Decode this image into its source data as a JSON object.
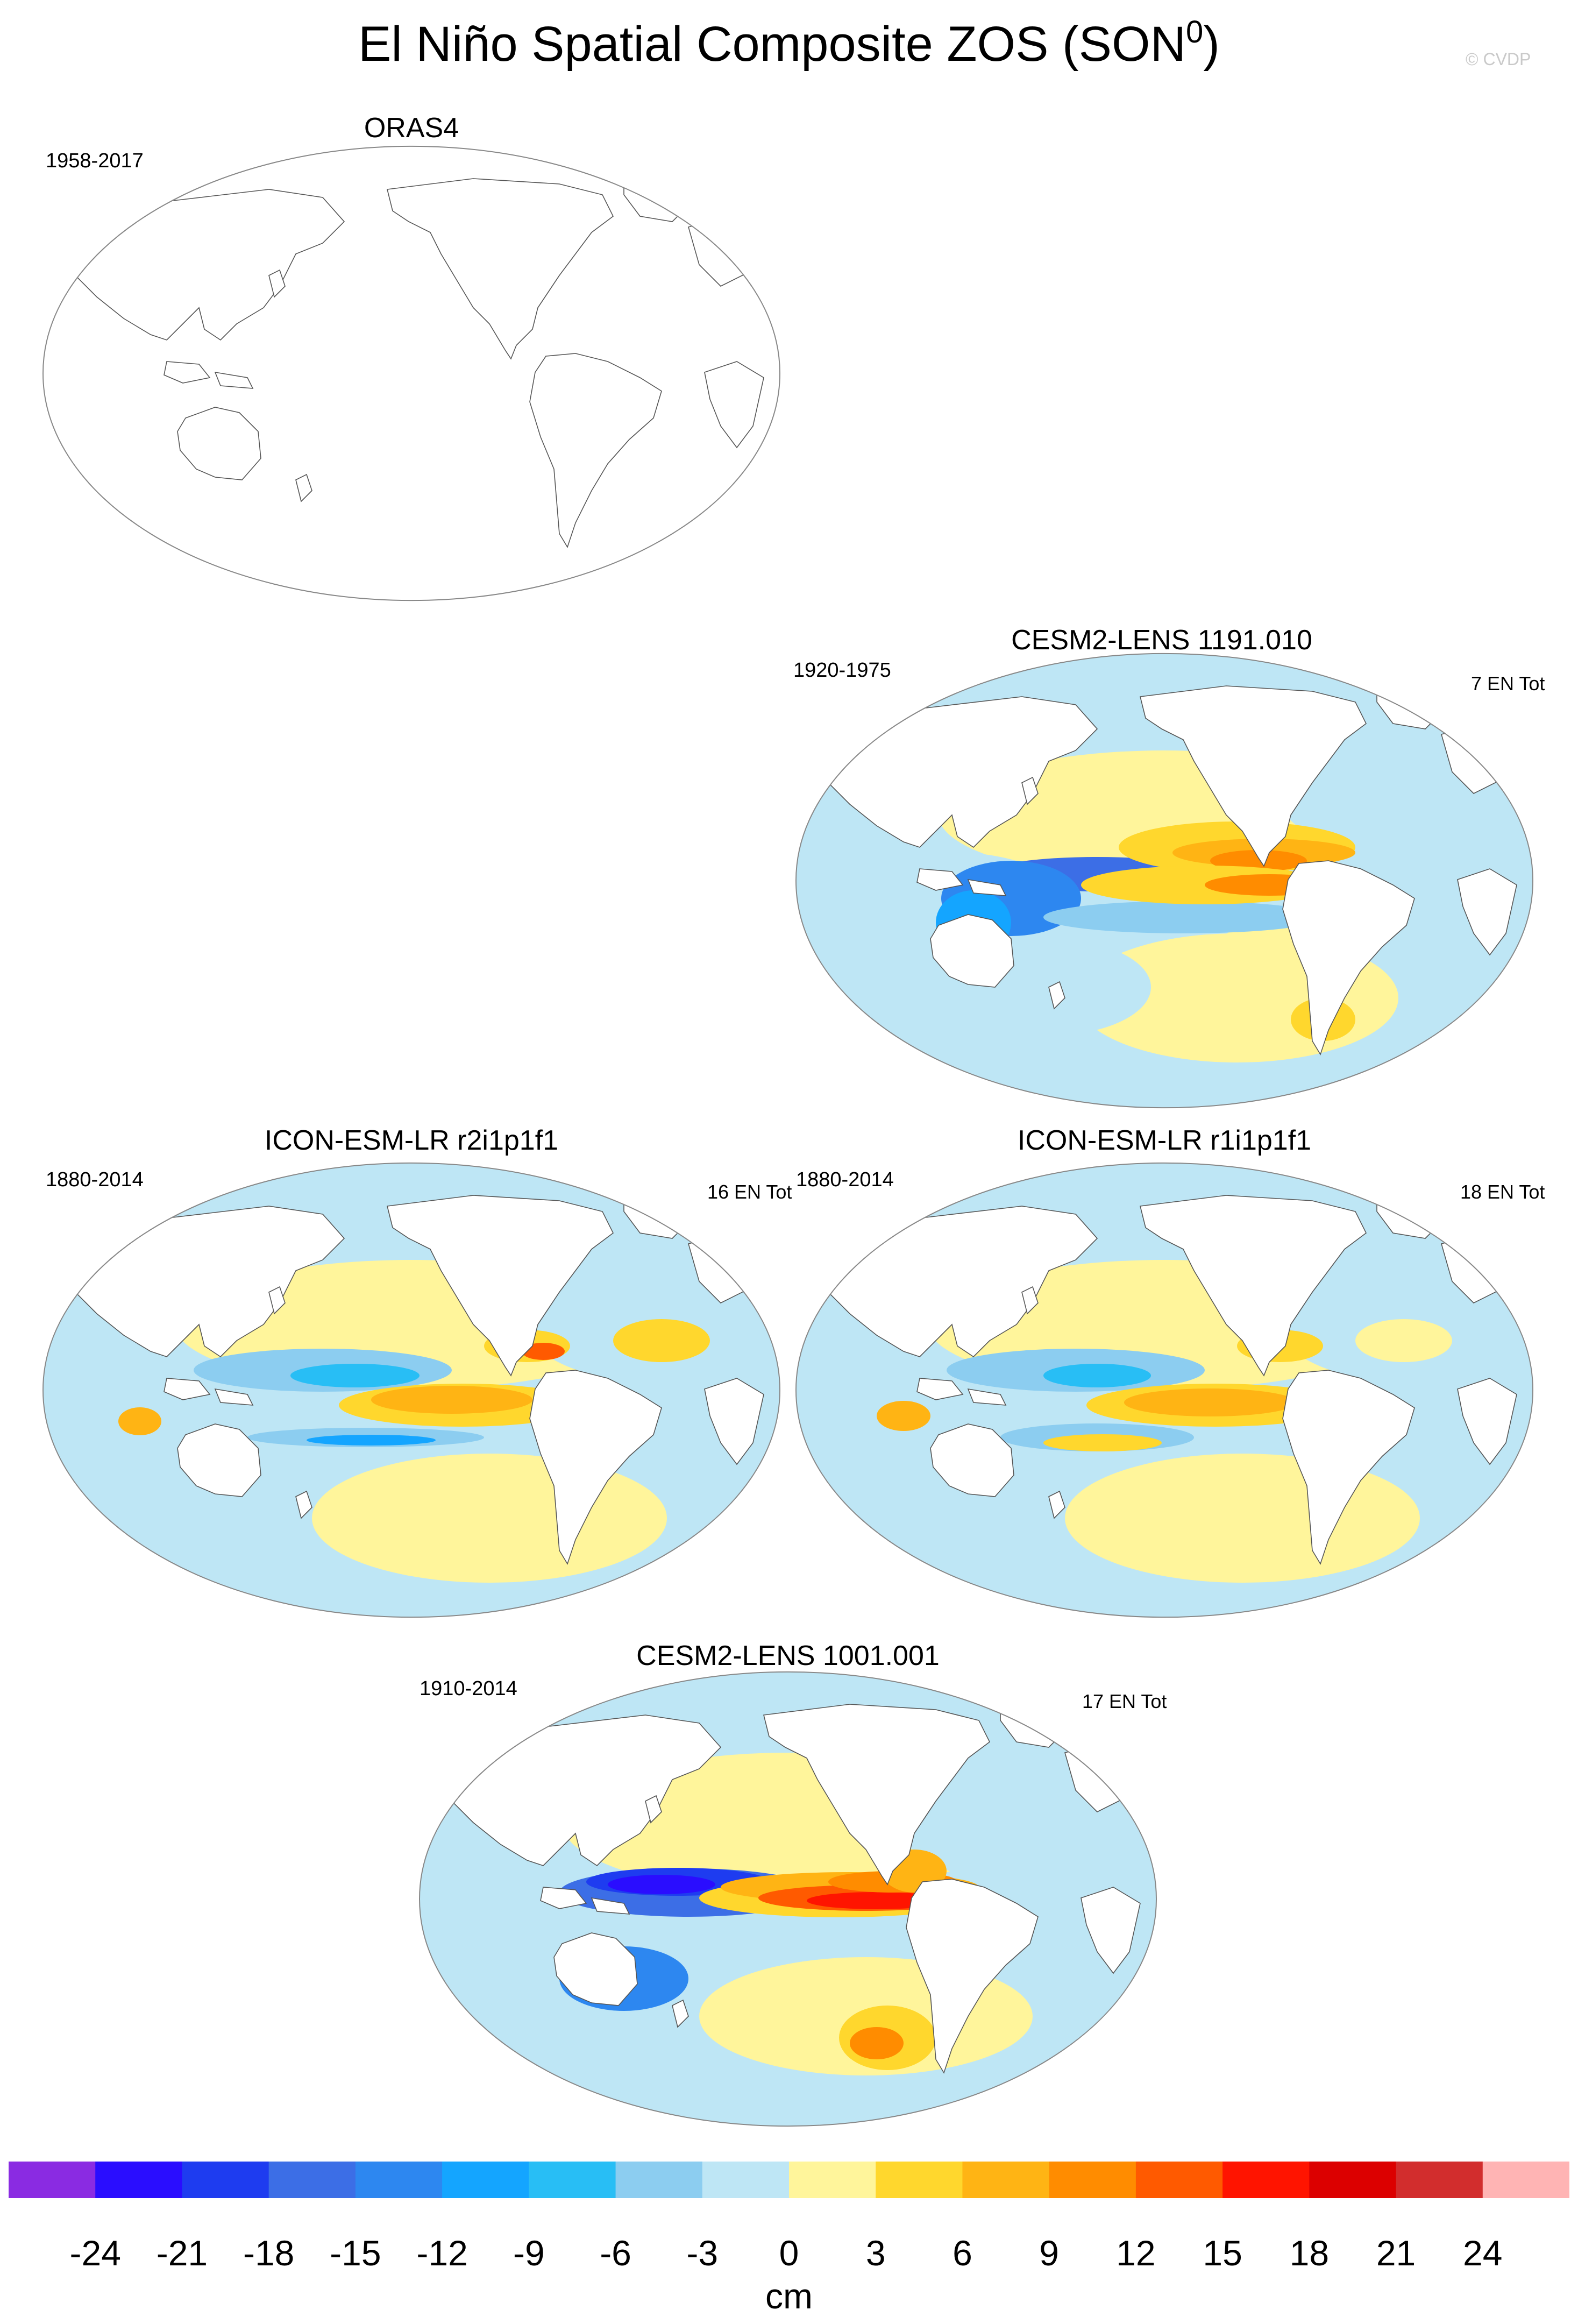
{
  "figure": {
    "title_main": "El Niño Spatial Composite ZOS (SON",
    "title_sup": "0",
    "title_close": ")",
    "watermark": "© CVDP"
  },
  "panels": [
    {
      "title": "ORAS4",
      "years": "1958-2017",
      "count": ""
    },
    {
      "title": "CESM2-LENS 1191.010",
      "years": "1920-1975",
      "count": "7 EN Tot"
    },
    {
      "title": "ICON-ESM-LR r2i1p1f1",
      "years": "1880-2014",
      "count": "16 EN Tot"
    },
    {
      "title": "ICON-ESM-LR r1i1p1f1",
      "years": "1880-2014",
      "count": "18 EN Tot"
    },
    {
      "title": "CESM2-LENS 1001.001",
      "years": "1910-2014",
      "count": "17 EN Tot"
    }
  ],
  "colorbar": {
    "units": "cm",
    "labels": [
      "-24",
      "-21",
      "-18",
      "-15",
      "-12",
      "-9",
      "-6",
      "-3",
      "0",
      "3",
      "6",
      "9",
      "12",
      "15",
      "18",
      "21",
      "24"
    ],
    "colors": [
      "#8a2be2",
      "#2a0dff",
      "#1e3cf0",
      "#3c6ee6",
      "#2d87f0",
      "#14a5ff",
      "#28bef5",
      "#8ccdf0",
      "#bee6f5",
      "#fff59b",
      "#ffd72d",
      "#ffb414",
      "#ff8c00",
      "#ff5a00",
      "#ff1400",
      "#dc0000",
      "#d22d2d",
      "#ffb4b4"
    ]
  }
}
